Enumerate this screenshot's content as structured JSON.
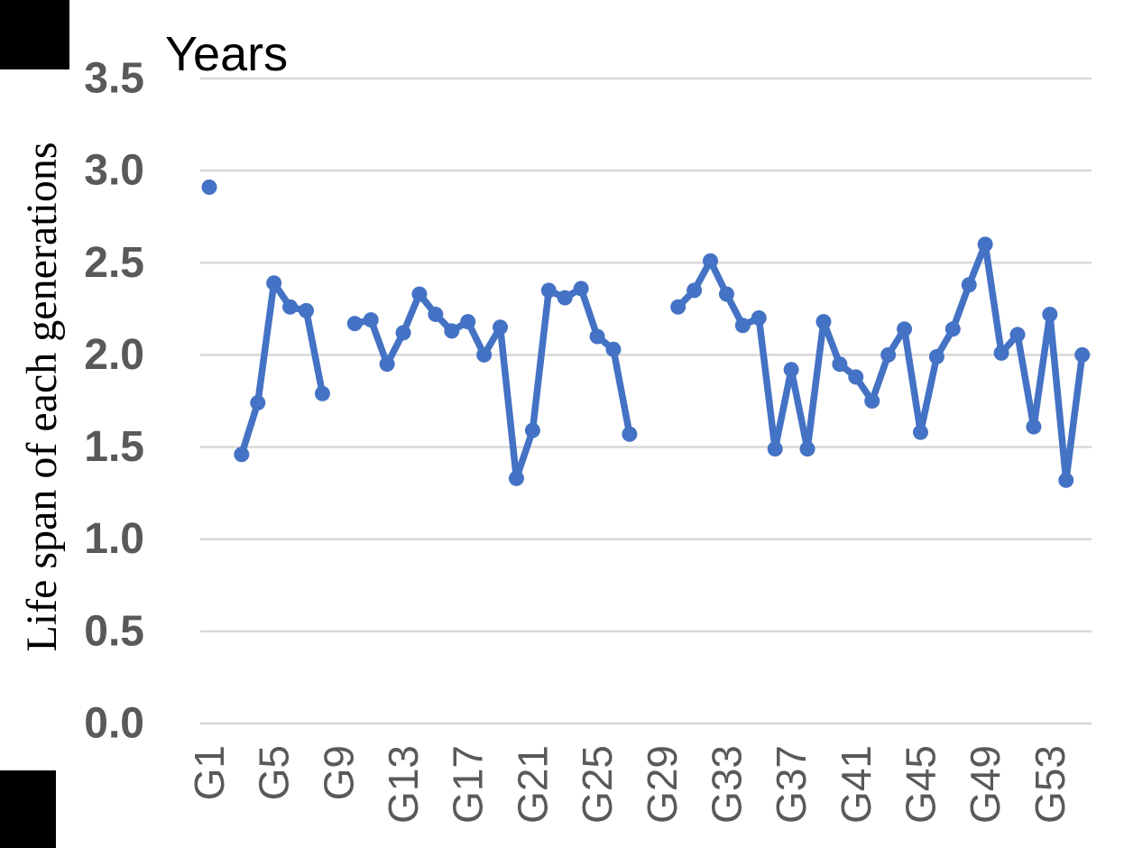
{
  "chart_data": {
    "type": "line",
    "title": "Years",
    "ylabel": "Life span of each generations",
    "xlabel": "",
    "ylim": [
      0.0,
      3.5
    ],
    "y_tick_step": 0.5,
    "y_tick_labels": [
      "0.0",
      "0.5",
      "1.0",
      "1.5",
      "2.0",
      "2.5",
      "3.0",
      "3.5"
    ],
    "x_tick_labels": [
      "G1",
      "G5",
      "G9",
      "G13",
      "G17",
      "G21",
      "G25",
      "G29",
      "G33",
      "G37",
      "G41",
      "G45",
      "G49",
      "G53"
    ],
    "x_tick_every": 4,
    "grid": true,
    "legend": "none",
    "marker": "circle",
    "categories": [
      "G1",
      "G2",
      "G3",
      "G4",
      "G5",
      "G6",
      "G7",
      "G8",
      "G9",
      "G10",
      "G11",
      "G12",
      "G13",
      "G14",
      "G15",
      "G16",
      "G17",
      "G18",
      "G19",
      "G20",
      "G21",
      "G22",
      "G23",
      "G24",
      "G25",
      "G26",
      "G27",
      "G28",
      "G29",
      "G30",
      "G31",
      "G32",
      "G33",
      "G34",
      "G35",
      "G36",
      "G37",
      "G38",
      "G39",
      "G40",
      "G41",
      "G42",
      "G43",
      "G44",
      "G45",
      "G46",
      "G47",
      "G48",
      "G49",
      "G50",
      "G51",
      "G52",
      "G53",
      "G54",
      "G55"
    ],
    "values": [
      2.91,
      null,
      1.46,
      1.74,
      2.39,
      2.26,
      2.24,
      1.79,
      null,
      2.17,
      2.19,
      1.95,
      2.12,
      2.33,
      2.22,
      2.13,
      2.18,
      2.0,
      2.15,
      1.33,
      1.59,
      2.35,
      2.31,
      2.36,
      2.1,
      2.03,
      1.57,
      null,
      null,
      2.26,
      2.35,
      2.51,
      2.33,
      2.16,
      2.2,
      1.49,
      1.92,
      1.49,
      2.18,
      1.95,
      1.88,
      1.75,
      2.0,
      2.14,
      1.58,
      1.99,
      2.14,
      2.38,
      2.6,
      2.01,
      2.11,
      1.61,
      2.22,
      1.32,
      2.0
    ],
    "colors": {
      "series": "#4472C4",
      "gridline": "#D8D8D8",
      "tick_label": "#595959",
      "title": "#000000"
    }
  }
}
